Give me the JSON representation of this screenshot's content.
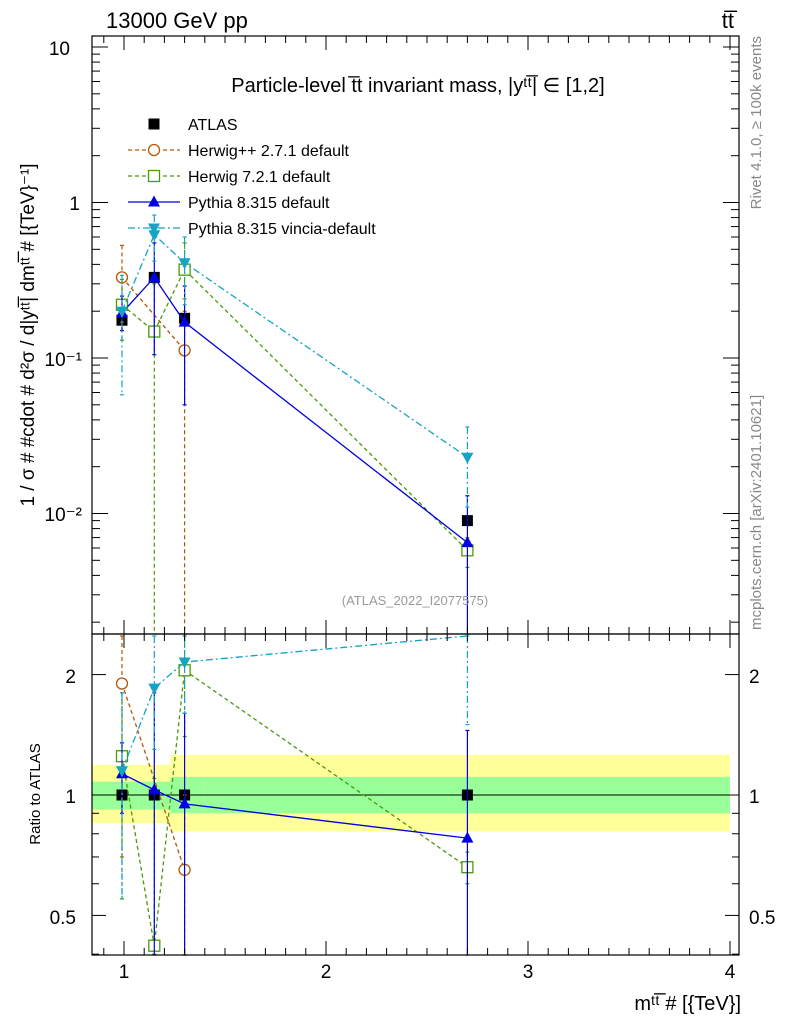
{
  "header": {
    "left": "13000 GeV pp",
    "right": "tt̅"
  },
  "side_labels": {
    "rivet": "Rivet 4.1.0, ≥ 100k events",
    "source": "mcplots.cern.ch [arXiv:2401.10621]"
  },
  "chart_data": {
    "type": "scatter",
    "title": "Particle-level t̅t invariant mass, |yᵗᵗ̅| ∈ [1,2]",
    "watermark": "(ATLAS_2022_I2077575)",
    "xlabel": "mᵗᵗ̅ # [{TeV}]",
    "ylabel": "1 / σ # #cdot # d²σ / d|yᵗᵗ̅| dmᵗᵗ̅ # [{TeV}⁻¹]",
    "ratio_ylabel": "Ratio to ATLAS",
    "xlim": [
      0.85,
      4.05
    ],
    "ylim": [
      0.0016,
      13
    ],
    "ratio_ylim": [
      0.4,
      2.4
    ],
    "x_ticks": [
      "1",
      "2",
      "3",
      "4"
    ],
    "y_ticks": [
      "10",
      "1",
      "10⁻¹",
      "10⁻²"
    ],
    "ratio_ticks": [
      "0.5",
      "1",
      "2"
    ],
    "bins": [
      [
        0.9,
        1.07
      ],
      [
        1.07,
        1.23
      ],
      [
        1.23,
        1.4
      ],
      [
        1.4,
        4.0
      ]
    ],
    "x": [
      0.99,
      1.15,
      1.3,
      2.7
    ],
    "uncertainty_bands": {
      "outer": [
        [
          0.85,
          1.19
        ],
        [
          0.85,
          1.19
        ],
        [
          0.81,
          1.26
        ],
        [
          0.81,
          1.26
        ]
      ],
      "inner": [
        [
          0.92,
          1.08
        ],
        [
          0.92,
          1.08
        ],
        [
          0.9,
          1.11
        ],
        [
          0.9,
          1.11
        ]
      ]
    },
    "series": [
      {
        "name": "ATLAS",
        "color": "#000000",
        "marker": "square-filled",
        "line": "none",
        "values": [
          0.175,
          0.33,
          0.18,
          0.009
        ],
        "err_low": [
          0.175,
          0.33,
          0.18,
          0.009
        ],
        "err_high": [
          0.175,
          0.33,
          0.18,
          0.009
        ],
        "ratio": [
          1,
          1,
          1,
          1
        ],
        "ratio_err_low": [
          1,
          1,
          1,
          1
        ],
        "ratio_err_high": [
          1,
          1,
          1,
          1
        ]
      },
      {
        "name": "Herwig++ 2.7.1 default",
        "color": "#b35806",
        "marker": "circle-open",
        "line": "dashed",
        "values": [
          0.33,
          null,
          0.112,
          null
        ],
        "err_low": [
          0.17,
          null,
          0.0016,
          null
        ],
        "err_high": [
          0.53,
          null,
          0.2,
          null
        ],
        "ratio": [
          1.9,
          null,
          0.65,
          null
        ],
        "ratio_err_low": [
          0.7,
          null,
          0.0,
          null
        ],
        "ratio_err_high": [
          2.5,
          null,
          1.0,
          null
        ]
      },
      {
        "name": "Herwig 7.2.1 default",
        "color": "#4a9a0a",
        "marker": "square-open",
        "line": "dashed",
        "values": [
          0.22,
          0.148,
          0.37,
          0.0058
        ],
        "err_low": [
          0.13,
          0.0016,
          0.24,
          0.0045
        ],
        "err_high": [
          0.32,
          0.3,
          0.55,
          0.007
        ],
        "ratio": [
          1.25,
          0.42,
          2.05,
          0.66
        ],
        "ratio_err_low": [
          0.55,
          0.4,
          1.4,
          0.6
        ],
        "ratio_err_high": [
          1.8,
          1.1,
          2.6,
          0.72
        ]
      },
      {
        "name": "Pythia 8.315 default",
        "color": "#0000e0",
        "marker": "triangle-up",
        "line": "solid",
        "values": [
          0.195,
          0.33,
          0.17,
          0.0065
        ],
        "err_low": [
          0.15,
          0.105,
          0.05,
          0.0016
        ],
        "err_high": [
          0.25,
          0.55,
          0.29,
          0.013
        ],
        "ratio": [
          1.13,
          1.03,
          0.95,
          0.78
        ],
        "ratio_err_low": [
          0.9,
          0.35,
          0.3,
          0.38
        ],
        "ratio_err_high": [
          1.35,
          1.8,
          1.6,
          1.45
        ]
      },
      {
        "name": "Pythia 8.315 vincia-default",
        "color": "#17a3c4",
        "marker": "triangle-down",
        "line": "dashdot",
        "values": [
          0.2,
          0.62,
          0.41,
          0.023
        ],
        "err_low": [
          0.058,
          0.42,
          0.22,
          0.011
        ],
        "err_high": [
          0.34,
          0.83,
          0.6,
          0.036
        ],
        "ratio": [
          1.15,
          1.85,
          2.15,
          2.55
        ],
        "ratio_err_low": [
          0.55,
          1.3,
          1.6,
          1.5
        ],
        "ratio_err_high": [
          1.8,
          2.5,
          2.7,
          4.0
        ]
      }
    ]
  }
}
